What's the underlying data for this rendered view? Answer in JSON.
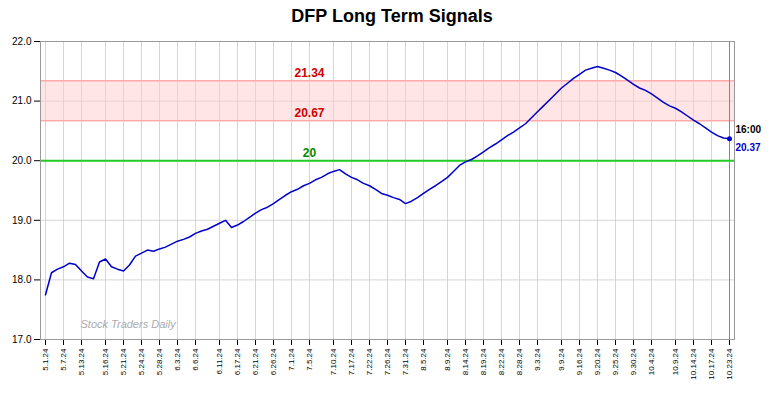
{
  "chart_data": {
    "type": "line",
    "title": "DFP Long Term Signals",
    "color": "#0000cc",
    "categories": [
      "5.1.24",
      null,
      null,
      "5.7.24",
      null,
      null,
      "5.13.24",
      null,
      null,
      null,
      "5.16.24",
      null,
      null,
      "5.21.24",
      null,
      null,
      "5.24.24",
      null,
      null,
      "5.28.24",
      null,
      null,
      "6.3.24",
      null,
      null,
      "6.6.24",
      null,
      null,
      null,
      "6.11.24",
      null,
      null,
      "6.17.24",
      null,
      null,
      "6.21.24",
      null,
      null,
      "6.26.24",
      null,
      null,
      "7.1.24",
      null,
      null,
      "7.5.24",
      null,
      null,
      null,
      "7.10.24",
      null,
      null,
      "7.17.24",
      null,
      null,
      "7.22.24",
      null,
      null,
      "7.26.24",
      null,
      null,
      "7.31.24",
      null,
      null,
      "8.5.24",
      null,
      null,
      null,
      "8.9.24",
      null,
      null,
      "8.14.24",
      null,
      null,
      "8.19.24",
      null,
      null,
      "8.22.24",
      null,
      null,
      "8.28.24",
      null,
      null,
      "9.3.24",
      null,
      null,
      null,
      "9.9.24",
      null,
      null,
      "9.16.24",
      null,
      null,
      "9.20.24",
      null,
      null,
      "9.25.24",
      null,
      null,
      "9.30.24",
      null,
      null,
      "10.4.24",
      null,
      null,
      null,
      "10.9.24",
      null,
      null,
      "10.14.24",
      null,
      null,
      "10.17.24",
      null,
      null,
      "10.23.24"
    ],
    "values": [
      17.75,
      18.12,
      18.18,
      18.22,
      18.28,
      18.26,
      18.15,
      18.05,
      18.02,
      18.3,
      18.35,
      18.22,
      18.18,
      18.15,
      18.25,
      18.4,
      18.45,
      18.5,
      18.48,
      18.52,
      18.55,
      18.6,
      18.65,
      18.68,
      18.72,
      18.78,
      18.82,
      18.85,
      18.9,
      18.95,
      19.0,
      18.88,
      18.92,
      18.98,
      19.05,
      19.12,
      19.18,
      19.22,
      19.28,
      19.35,
      19.42,
      19.48,
      19.52,
      19.58,
      19.62,
      19.68,
      19.72,
      19.78,
      19.82,
      19.85,
      19.78,
      19.72,
      19.68,
      19.62,
      19.58,
      19.52,
      19.45,
      19.42,
      19.38,
      19.35,
      19.28,
      19.32,
      19.38,
      19.45,
      19.52,
      19.58,
      19.65,
      19.72,
      19.82,
      19.92,
      19.98,
      20.02,
      20.08,
      20.15,
      20.22,
      20.28,
      20.35,
      20.42,
      20.48,
      20.55,
      20.62,
      20.72,
      20.82,
      20.92,
      21.02,
      21.12,
      21.22,
      21.3,
      21.38,
      21.45,
      21.52,
      21.55,
      21.58,
      21.55,
      21.52,
      21.48,
      21.42,
      21.35,
      21.28,
      21.22,
      21.18,
      21.12,
      21.05,
      20.98,
      20.92,
      20.88,
      20.82,
      20.75,
      20.68,
      20.62,
      20.55,
      20.48,
      20.42,
      20.38,
      20.37
    ],
    "ylim": [
      17,
      22
    ],
    "yticks": [
      17,
      18,
      19,
      20,
      21,
      22
    ],
    "grid": true,
    "hlines": [
      {
        "value": 21.34,
        "label": "21.34",
        "color": "#ffaaaa",
        "label_color": "#cc0000"
      },
      {
        "value": 20.67,
        "label": "20.67",
        "color": "#ffaaaa",
        "label_color": "#cc0000"
      },
      {
        "value": 20,
        "label": "20",
        "color": "#22cc22",
        "label_color": "#008800"
      }
    ],
    "band": {
      "from": 20.67,
      "to": 21.34,
      "color": "#ffcccc"
    },
    "annotations": [
      {
        "text": "16:00",
        "color": "#000000"
      },
      {
        "text": "20.37",
        "color": "#0000cc"
      }
    ],
    "watermark": "Stock Traders Daily"
  }
}
